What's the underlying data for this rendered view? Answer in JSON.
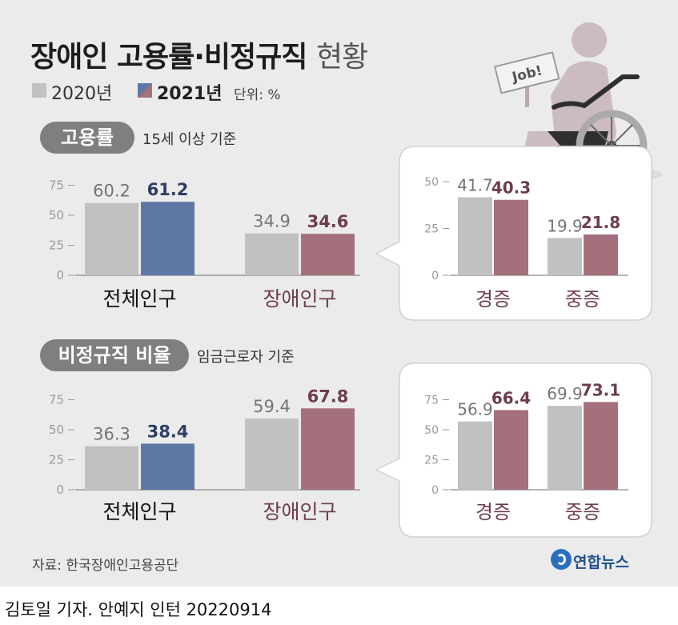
{
  "title": {
    "bold": "장애인 고용률·비정규직",
    "light": "현황"
  },
  "legend": {
    "y2020": "2020년",
    "y2021": "2021년",
    "unit": "단위: %"
  },
  "sections": {
    "employment": {
      "label": "고용률",
      "basis": "15세 이상 기준"
    },
    "nonregular": {
      "label": "비정규직 비율",
      "basis": "임금근로자 기준"
    }
  },
  "sign_text": "Job!",
  "source": "자료: 한국장애인고용공단",
  "logo": "연합뉴스",
  "byline": "김토일 기자. 안예지 인턴  20220914",
  "colors": {
    "y2020": "#c1c1c1",
    "y2021_total": "#5e78a6",
    "y2021_disabled": "#a4707c",
    "total_label": "#2b3f63",
    "disabled_label": "#6e3d4b"
  },
  "chart_data": [
    {
      "type": "bar",
      "id": "employment-main",
      "categories": [
        "전체인구",
        "장애인구"
      ],
      "series": [
        {
          "name": "2020년",
          "values": [
            60.2,
            34.9
          ]
        },
        {
          "name": "2021년",
          "values": [
            61.2,
            34.6
          ]
        }
      ],
      "yticks": [
        0,
        25,
        50,
        75
      ],
      "ylim": [
        0,
        80
      ]
    },
    {
      "type": "bar",
      "id": "employment-disabled",
      "categories": [
        "경증",
        "중증"
      ],
      "series": [
        {
          "name": "2020년",
          "values": [
            41.7,
            19.9
          ]
        },
        {
          "name": "2021년",
          "values": [
            40.3,
            21.8
          ]
        }
      ],
      "yticks": [
        0,
        25,
        50
      ],
      "ylim": [
        0,
        53
      ]
    },
    {
      "type": "bar",
      "id": "nonregular-main",
      "categories": [
        "전체인구",
        "장애인구"
      ],
      "series": [
        {
          "name": "2020년",
          "values": [
            36.3,
            59.4
          ]
        },
        {
          "name": "2021년",
          "values": [
            38.4,
            67.8
          ]
        }
      ],
      "yticks": [
        0,
        25,
        50,
        75
      ],
      "ylim": [
        0,
        80
      ]
    },
    {
      "type": "bar",
      "id": "nonregular-disabled",
      "categories": [
        "경증",
        "중증"
      ],
      "series": [
        {
          "name": "2020년",
          "values": [
            56.9,
            69.9
          ]
        },
        {
          "name": "2021년",
          "values": [
            66.4,
            73.1
          ]
        }
      ],
      "yticks": [
        0,
        25,
        50,
        75
      ],
      "ylim": [
        0,
        80
      ]
    }
  ]
}
